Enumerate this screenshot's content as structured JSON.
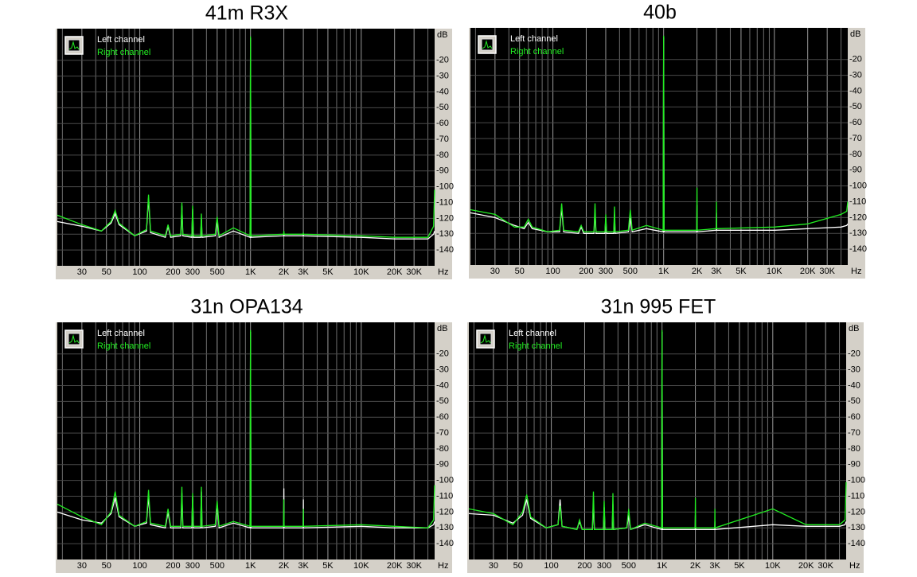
{
  "chart_data": [
    {
      "type": "line",
      "title": "41m  R3X",
      "xscale": "log",
      "xunit": "Hz",
      "yunit": "dB",
      "xlim": [
        18,
        46000
      ],
      "ylim": [
        -150,
        0
      ],
      "xticks": [
        30,
        50,
        100,
        200,
        300,
        500,
        {
          "value": 1000,
          "label": "1K"
        },
        {
          "value": 2000,
          "label": "2K"
        },
        {
          "value": 3000,
          "label": "3K"
        },
        {
          "value": 5000,
          "label": "5K"
        },
        {
          "value": 10000,
          "label": "10K"
        },
        {
          "value": 20000,
          "label": "20K"
        },
        {
          "value": 30000,
          "label": "30K"
        }
      ],
      "xgrid_minor": [
        20,
        40,
        60,
        70,
        80,
        90,
        400,
        600,
        700,
        800,
        900,
        4000,
        6000,
        7000,
        8000,
        9000,
        40000
      ],
      "yticks": [
        -20,
        -30,
        -40,
        -50,
        -60,
        -70,
        -80,
        -90,
        -100,
        -110,
        -120,
        -130,
        -140
      ],
      "grid": true,
      "legend": "top-left",
      "x": [
        18,
        30,
        45,
        55,
        60,
        65,
        90,
        115,
        120,
        125,
        170,
        180,
        190,
        235,
        240,
        245,
        295,
        300,
        305,
        355,
        360,
        365,
        480,
        500,
        520,
        700,
        990,
        1000,
        1010,
        1990,
        2000,
        2010,
        2990,
        3000,
        3010,
        10000,
        20000,
        40000,
        45000,
        46000
      ],
      "series": [
        {
          "name": "Left channel",
          "color": "#ffffff",
          "values": [
            -122,
            -125,
            -128,
            -123,
            -117,
            -124,
            -131,
            -128,
            -107,
            -129,
            -132,
            -125,
            -132,
            -131,
            -112,
            -131,
            -132,
            -114,
            -132,
            -132,
            -120,
            -132,
            -131,
            -121,
            -132,
            -128,
            -132,
            -6,
            -132,
            -131,
            -130,
            -131,
            -131,
            -130,
            -131,
            -132,
            -133,
            -133,
            -130,
            -128
          ]
        },
        {
          "name": "Right channel",
          "color": "#22ee22",
          "values": [
            -118,
            -124,
            -128,
            -122,
            -115,
            -123,
            -131,
            -127,
            -105,
            -128,
            -131,
            -124,
            -131,
            -130,
            -110,
            -130,
            -131,
            -112,
            -131,
            -131,
            -117,
            -131,
            -130,
            -119,
            -131,
            -126,
            -131,
            -5,
            -131,
            -130,
            -128,
            -130,
            -130,
            -129,
            -130,
            -131,
            -132,
            -132,
            -125,
            -102
          ]
        }
      ]
    },
    {
      "type": "line",
      "title": "40b",
      "xscale": "log",
      "xunit": "Hz",
      "yunit": "dB",
      "xlim": [
        18,
        46000
      ],
      "ylim": [
        -150,
        0
      ],
      "xticks": [
        30,
        50,
        100,
        200,
        300,
        500,
        {
          "value": 1000,
          "label": "1K"
        },
        {
          "value": 2000,
          "label": "2K"
        },
        {
          "value": 3000,
          "label": "3K"
        },
        {
          "value": 5000,
          "label": "5K"
        },
        {
          "value": 10000,
          "label": "10K"
        },
        {
          "value": 20000,
          "label": "20K"
        },
        {
          "value": 30000,
          "label": "30K"
        }
      ],
      "xgrid_minor": [
        20,
        40,
        60,
        70,
        80,
        90,
        400,
        600,
        700,
        800,
        900,
        4000,
        6000,
        7000,
        8000,
        9000,
        40000
      ],
      "yticks": [
        -20,
        -30,
        -40,
        -50,
        -60,
        -70,
        -80,
        -90,
        -100,
        -110,
        -120,
        -130,
        -140
      ],
      "grid": true,
      "legend": "top-left",
      "x": [
        18,
        30,
        45,
        55,
        60,
        65,
        90,
        115,
        120,
        125,
        170,
        180,
        190,
        235,
        240,
        245,
        295,
        300,
        305,
        355,
        360,
        365,
        480,
        500,
        520,
        700,
        990,
        1000,
        1010,
        1990,
        2000,
        2010,
        2990,
        3000,
        3010,
        10000,
        20000,
        40000,
        45000,
        46000
      ],
      "series": [
        {
          "name": "Left channel",
          "color": "#ffffff",
          "values": [
            -117,
            -120,
            -125,
            -127,
            -123,
            -127,
            -129,
            -129,
            -114,
            -129,
            -130,
            -126,
            -130,
            -130,
            -115,
            -130,
            -130,
            -120,
            -130,
            -130,
            -118,
            -130,
            -129,
            -120,
            -129,
            -127,
            -129,
            -6,
            -129,
            -129,
            -112,
            -129,
            -128,
            -117,
            -128,
            -128,
            -127,
            -126,
            -125,
            -124
          ]
        },
        {
          "name": "Right channel",
          "color": "#22ee22",
          "values": [
            -115,
            -118,
            -126,
            -126,
            -121,
            -126,
            -129,
            -128,
            -111,
            -128,
            -129,
            -125,
            -129,
            -129,
            -111,
            -129,
            -129,
            -118,
            -129,
            -129,
            -113,
            -129,
            -128,
            -115,
            -128,
            -125,
            -128,
            -5,
            -128,
            -128,
            -101,
            -128,
            -127,
            -110,
            -127,
            -126,
            -124,
            -118,
            -116,
            -110
          ]
        }
      ]
    },
    {
      "type": "line",
      "title": "31n OPA134",
      "xscale": "log",
      "xunit": "Hz",
      "yunit": "dB",
      "xlim": [
        18,
        46000
      ],
      "ylim": [
        -150,
        0
      ],
      "xticks": [
        30,
        50,
        100,
        200,
        300,
        500,
        {
          "value": 1000,
          "label": "1K"
        },
        {
          "value": 2000,
          "label": "2K"
        },
        {
          "value": 3000,
          "label": "3K"
        },
        {
          "value": 5000,
          "label": "5K"
        },
        {
          "value": 10000,
          "label": "10K"
        },
        {
          "value": 20000,
          "label": "20K"
        },
        {
          "value": 30000,
          "label": "30K"
        }
      ],
      "xgrid_minor": [
        20,
        40,
        60,
        70,
        80,
        90,
        400,
        600,
        700,
        800,
        900,
        4000,
        6000,
        7000,
        8000,
        9000,
        40000
      ],
      "yticks": [
        -20,
        -30,
        -40,
        -50,
        -60,
        -70,
        -80,
        -90,
        -100,
        -110,
        -120,
        -130,
        -140
      ],
      "grid": true,
      "legend": "top-left",
      "x": [
        18,
        30,
        45,
        55,
        60,
        65,
        90,
        115,
        120,
        125,
        170,
        180,
        190,
        235,
        240,
        245,
        295,
        300,
        305,
        355,
        360,
        365,
        480,
        500,
        520,
        700,
        990,
        1000,
        1010,
        1990,
        2000,
        2010,
        2990,
        3000,
        3010,
        10000,
        20000,
        40000,
        45000,
        46000
      ],
      "series": [
        {
          "name": "Left channel",
          "color": "#ffffff",
          "values": [
            -120,
            -125,
            -127,
            -121,
            -111,
            -123,
            -129,
            -127,
            -110,
            -128,
            -130,
            -120,
            -130,
            -130,
            -108,
            -130,
            -130,
            -110,
            -130,
            -130,
            -107,
            -130,
            -129,
            -115,
            -130,
            -127,
            -130,
            -6,
            -130,
            -130,
            -105,
            -130,
            -130,
            -112,
            -130,
            -129,
            -130,
            -130,
            -128,
            -126
          ]
        },
        {
          "name": "Right channel",
          "color": "#22ee22",
          "values": [
            -115,
            -123,
            -128,
            -120,
            -107,
            -122,
            -129,
            -126,
            -106,
            -127,
            -129,
            -118,
            -129,
            -129,
            -104,
            -129,
            -129,
            -108,
            -129,
            -129,
            -104,
            -129,
            -128,
            -113,
            -129,
            -126,
            -129,
            -5,
            -129,
            -129,
            -112,
            -129,
            -129,
            -118,
            -129,
            -128,
            -129,
            -130,
            -125,
            -103
          ]
        }
      ]
    },
    {
      "type": "line",
      "title": "31n 995 FET",
      "xscale": "log",
      "xunit": "Hz",
      "yunit": "dB",
      "xlim": [
        18,
        46000
      ],
      "ylim": [
        -150,
        0
      ],
      "xticks": [
        30,
        50,
        100,
        200,
        300,
        500,
        {
          "value": 1000,
          "label": "1K"
        },
        {
          "value": 2000,
          "label": "2K"
        },
        {
          "value": 3000,
          "label": "3K"
        },
        {
          "value": 5000,
          "label": "5K"
        },
        {
          "value": 10000,
          "label": "10K"
        },
        {
          "value": 20000,
          "label": "20K"
        },
        {
          "value": 30000,
          "label": "30K"
        }
      ],
      "xgrid_minor": [
        20,
        40,
        60,
        70,
        80,
        90,
        400,
        600,
        700,
        800,
        900,
        4000,
        6000,
        7000,
        8000,
        9000,
        40000
      ],
      "yticks": [
        -20,
        -30,
        -40,
        -50,
        -60,
        -70,
        -80,
        -90,
        -100,
        -110,
        -120,
        -130,
        -140
      ],
      "grid": true,
      "legend": "top-left",
      "x": [
        18,
        30,
        45,
        55,
        60,
        65,
        90,
        115,
        120,
        125,
        170,
        180,
        190,
        235,
        240,
        245,
        295,
        300,
        305,
        355,
        360,
        365,
        480,
        500,
        520,
        700,
        990,
        1000,
        1010,
        1990,
        2000,
        2010,
        2990,
        3000,
        3010,
        10000,
        20000,
        40000,
        45000,
        46000
      ],
      "series": [
        {
          "name": "Left channel",
          "color": "#ffffff",
          "values": [
            -121,
            -122,
            -127,
            -122,
            -112,
            -124,
            -130,
            -128,
            -112,
            -129,
            -131,
            -126,
            -131,
            -131,
            -113,
            -131,
            -131,
            -117,
            -131,
            -131,
            -115,
            -131,
            -130,
            -122,
            -131,
            -128,
            -131,
            -6,
            -131,
            -131,
            -122,
            -131,
            -131,
            -126,
            -131,
            -128,
            -129,
            -129,
            -128,
            -126
          ]
        },
        {
          "name": "Right channel",
          "color": "#22ee22",
          "values": [
            -118,
            -121,
            -128,
            -120,
            -109,
            -123,
            -130,
            -128,
            -116,
            -129,
            -131,
            -125,
            -131,
            -131,
            -107,
            -131,
            -131,
            -113,
            -131,
            -131,
            -108,
            -131,
            -130,
            -118,
            -131,
            -127,
            -130,
            -5,
            -130,
            -130,
            -111,
            -130,
            -130,
            -118,
            -130,
            -118,
            -128,
            -128,
            -125,
            -101
          ]
        }
      ]
    }
  ]
}
